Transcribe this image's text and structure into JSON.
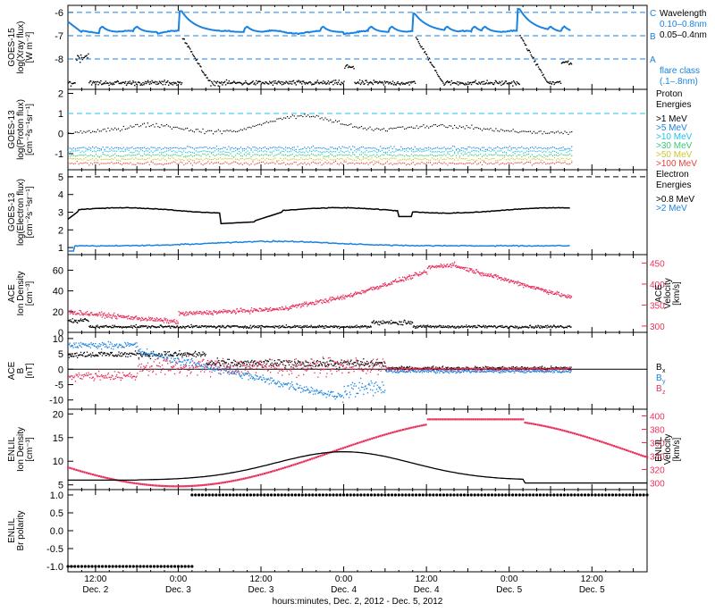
{
  "footer": {
    "xlabel": "hours:minutes, Dec.  2, 2012 - Dec.  5, 2012"
  },
  "x_axis": {
    "range_hours": [
      0,
      84
    ],
    "ticks": [
      {
        "hours": 4,
        "time": "12:00",
        "date": "Dec. 2"
      },
      {
        "hours": 16,
        "time": "0:00",
        "date": "Dec. 3"
      },
      {
        "hours": 28,
        "time": "12:00",
        "date": "Dec. 3"
      },
      {
        "hours": 40,
        "time": "0:00",
        "date": "Dec. 4"
      },
      {
        "hours": 52,
        "time": "12:00",
        "date": "Dec. 4"
      },
      {
        "hours": 64,
        "time": "0:00",
        "date": "Dec. 5"
      },
      {
        "hours": 76,
        "time": "12:00",
        "date": "Dec. 5"
      }
    ]
  },
  "colors": {
    "black": "#000000",
    "blue": "#1a82e0",
    "pink": "#e8305a",
    "cyan": "#22c3e6",
    "green": "#38c878",
    "yellow": "#c8c830",
    "orange": "#ffa028",
    "red": "#e8403c"
  },
  "chart_data": [
    {
      "type": "line",
      "id": "xray",
      "ylabel": [
        "GOES-15",
        "log(Xray flux)",
        "[W m⁻²]"
      ],
      "ylim": [
        -9.3,
        -5.7
      ],
      "yticks": [
        -6,
        -7,
        -8
      ],
      "flare_levels": [
        {
          "value": -6,
          "label": "C"
        },
        {
          "value": -7,
          "label": "B"
        },
        {
          "value": -8,
          "label": "A"
        }
      ],
      "legend_title": "Wavelength",
      "series": [
        {
          "name": "0.10–0.8nm",
          "color": "#1a82e0",
          "kind": "line"
        },
        {
          "name": "0.05–0.4nm",
          "color": "#000000",
          "kind": "scatter"
        }
      ],
      "extra_legend": [
        "flare class",
        "(.1–.8nm)"
      ],
      "peaks": [
        {
          "x_hours": 16.5,
          "y": -5.95
        },
        {
          "x_hours": 50.3,
          "y": -6.05
        },
        {
          "x_hours": 65.5,
          "y": -5.85
        }
      ]
    },
    {
      "type": "scatter",
      "id": "proton",
      "ylabel": [
        "GOES-13",
        "log(Proton flux)",
        "[cm⁻²s⁻¹sr⁻¹]"
      ],
      "ylim": [
        -1.8,
        2.2
      ],
      "yticks": [
        2,
        1,
        0,
        -1
      ],
      "reference_level": 1,
      "legend_title": [
        "Proton",
        "Energies"
      ],
      "series": [
        {
          "name": ">1 MeV",
          "color": "#000000",
          "level": 0.2
        },
        {
          "name": ">5 MeV",
          "color": "#1a82e0",
          "level": -0.7
        },
        {
          "name": ">10 MeV",
          "color": "#22c3e6",
          "level": -0.85
        },
        {
          "name": ">30 MeV",
          "color": "#38c878",
          "level": -1.05
        },
        {
          "name": ">50 MeV",
          "color": "#c8c830",
          "level": -1.25
        },
        {
          "name": ">100 MeV",
          "color": "#e8403c",
          "level": -1.45
        }
      ]
    },
    {
      "type": "line",
      "id": "electron",
      "ylabel": [
        "GOES-13",
        "log(Electron flux)",
        "[cm⁻²s⁻¹sr⁻¹]"
      ],
      "ylim": [
        0.6,
        5.4
      ],
      "yticks": [
        5,
        4,
        3,
        2,
        1
      ],
      "reference_level": 5,
      "legend_title": [
        "Electron",
        "Energies"
      ],
      "series": [
        {
          "name": ">0.8 MeV",
          "color": "#000000"
        },
        {
          "name": ">2 MeV",
          "color": "#1a82e0"
        }
      ]
    },
    {
      "type": "scatter",
      "id": "ace_plasma",
      "ylabel": [
        "ACE",
        "Ion Density",
        "[cm⁻³]"
      ],
      "ylabel_right": [
        "ACE",
        "Velocity",
        "[km/s]"
      ],
      "ylim": [
        0,
        75
      ],
      "yticks": [
        60,
        40,
        20,
        0
      ],
      "ylim_right": [
        285,
        470
      ],
      "yticks_right": [
        450,
        400,
        350,
        300
      ],
      "series": [
        {
          "name": "Ion Density",
          "color": "#000000",
          "axis": "left"
        },
        {
          "name": "Velocity",
          "color": "#e8305a",
          "axis": "right"
        }
      ]
    },
    {
      "type": "scatter",
      "id": "ace_mag",
      "ylabel": [
        "ACE",
        "B",
        "[nT]"
      ],
      "ylim": [
        -13,
        12
      ],
      "yticks": [
        10,
        5,
        0,
        -5,
        -10
      ],
      "series": [
        {
          "name": "Bx",
          "label": "B",
          "sub": "x",
          "color": "#000000"
        },
        {
          "name": "By",
          "label": "B",
          "sub": "y",
          "color": "#1a82e0"
        },
        {
          "name": "Bz",
          "label": "B",
          "sub": "z",
          "color": "#e8305a"
        }
      ]
    },
    {
      "type": "line",
      "id": "enlil",
      "ylabel": [
        "ENLIL",
        "Ion Density",
        "[cm⁻³]"
      ],
      "ylabel_right": [
        "ENLIL",
        "Velocity",
        "[km/s]"
      ],
      "ylim": [
        4,
        21
      ],
      "yticks": [
        20,
        15,
        10,
        5
      ],
      "ylim_right": [
        290,
        410
      ],
      "yticks_right": [
        400,
        380,
        360,
        340,
        320,
        300
      ],
      "series": [
        {
          "name": "Ion Density",
          "color": "#000000",
          "axis": "left"
        },
        {
          "name": "Velocity",
          "color": "#e8305a",
          "axis": "right"
        }
      ]
    },
    {
      "type": "scatter",
      "id": "polarity",
      "ylabel": [
        "ENLIL",
        "Br polarity"
      ],
      "ylim": [
        -1.15,
        1.15
      ],
      "yticks": [
        1.0,
        0.5,
        0.0,
        -0.5,
        -1.0
      ],
      "ytick_labels": [
        "1.0",
        "0.5",
        "0.0",
        "-0.5",
        "-1.0"
      ],
      "series": [
        {
          "name": "Br polarity",
          "color": "#000000",
          "segments": [
            {
              "from_hours": 0,
              "to_hours": 18,
              "value": -1
            },
            {
              "from_hours": 18,
              "to_hours": 84,
              "value": 1
            }
          ]
        }
      ]
    }
  ]
}
